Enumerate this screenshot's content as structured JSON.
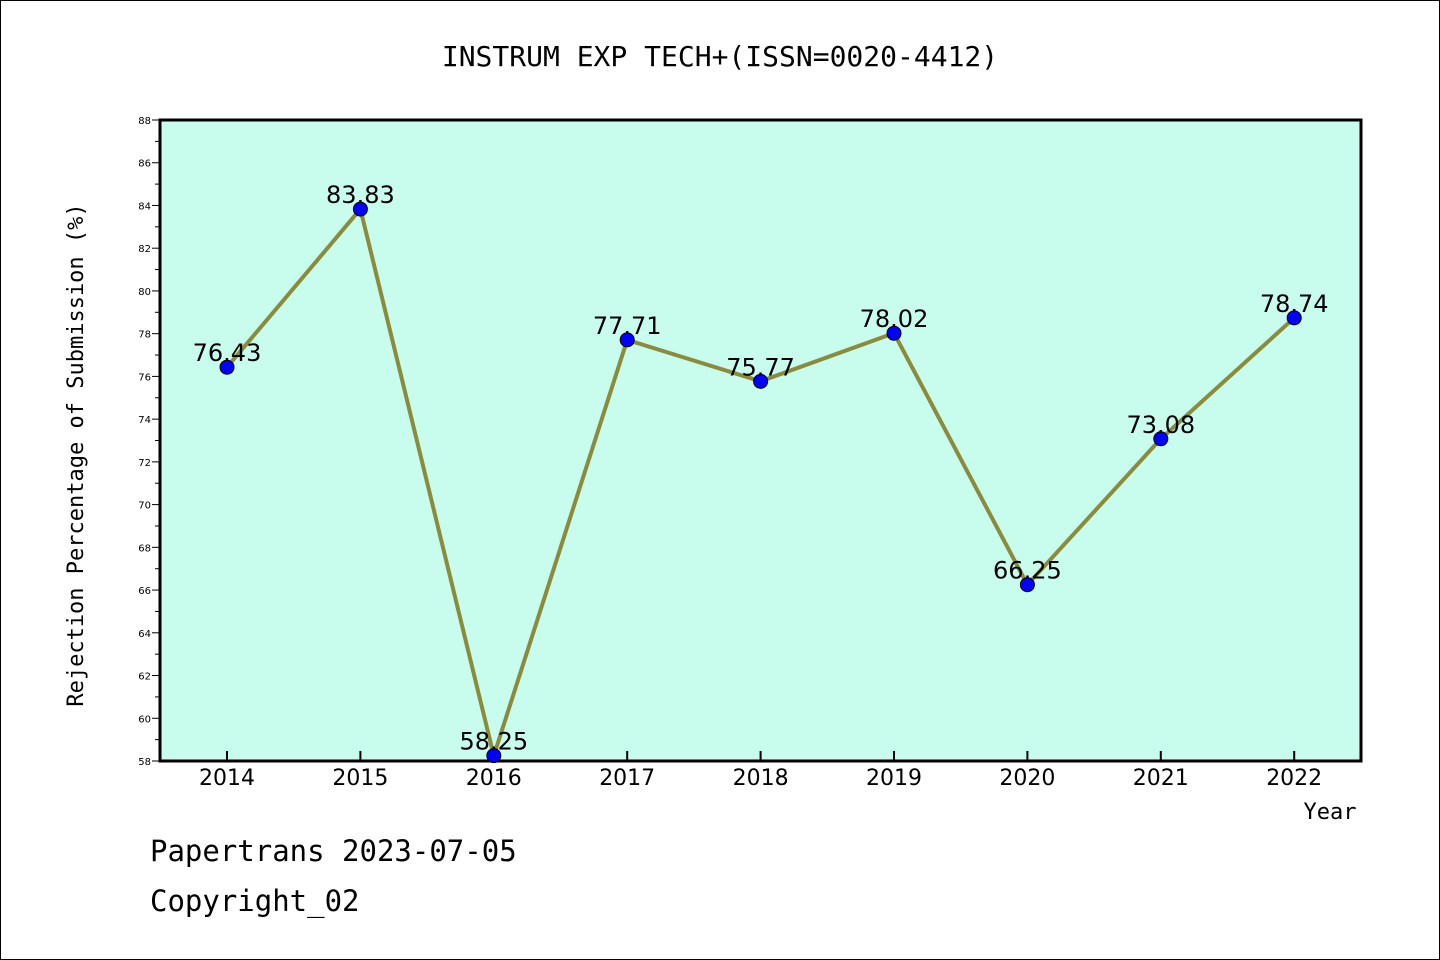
{
  "chart_data": {
    "type": "line",
    "title": "INSTRUM EXP TECH+(ISSN=0020-4412)",
    "xlabel": "Year",
    "ylabel": "Rejection Percentage of Submission (%)",
    "categories": [
      "2014",
      "2015",
      "2016",
      "2017",
      "2018",
      "2019",
      "2020",
      "2021",
      "2022"
    ],
    "values": [
      76.43,
      83.83,
      58.25,
      77.71,
      75.77,
      78.02,
      66.25,
      73.08,
      78.74
    ],
    "data_labels": [
      "76.43",
      "83.83",
      "58.25",
      "77.71",
      "75.77",
      "78.02",
      "66.25",
      "73.08",
      "78.74"
    ],
    "ylim": [
      58,
      88
    ],
    "yticks": [
      "58",
      "60",
      "62",
      "64",
      "66",
      "68",
      "70",
      "72",
      "74",
      "76",
      "78",
      "80",
      "82",
      "84",
      "86",
      "88"
    ],
    "grid": false,
    "colors": {
      "plot_background": "#c8fcec",
      "line": "#8b8b3c",
      "marker": "#0000ff"
    }
  },
  "footer": {
    "line1": "Papertrans 2023-07-05",
    "line2": "Copyright_02"
  }
}
